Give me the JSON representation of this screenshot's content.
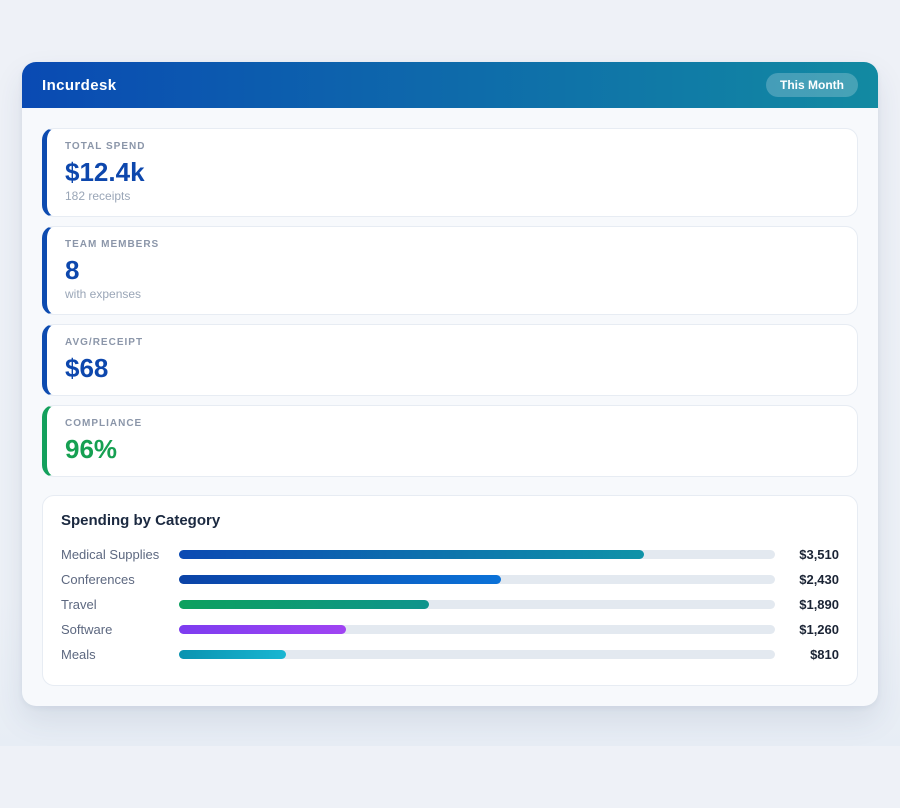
{
  "app": {
    "title": "Incurdesk",
    "period_badge": "This Month",
    "header_gradient": [
      "#0a4ab3",
      "#128aa2"
    ]
  },
  "stats": [
    {
      "label": "TOTAL SPEND",
      "value": "$12.4k",
      "caption": "182 receipts",
      "accent_color": "#0d4bb0",
      "value_color": "#0d47ad"
    },
    {
      "label": "TEAM MEMBERS",
      "value": "8",
      "caption": "with expenses",
      "accent_color": "#0d4bb0",
      "value_color": "#0d47ad"
    },
    {
      "label": "AVG/RECEIPT",
      "value": "$68",
      "caption": null,
      "accent_color": "#0d4bb0",
      "value_color": "#0d47ad"
    },
    {
      "label": "COMPLIANCE",
      "value": "96%",
      "caption": null,
      "accent_color": "#13a05c",
      "value_color": "#16a052"
    }
  ],
  "chart": {
    "title": "Spending by Category",
    "track_color": "#e3e9f0"
  },
  "chart_data": {
    "type": "bar",
    "orientation": "horizontal",
    "title": "Spending by Category",
    "categories": [
      "Medical Supplies",
      "Conferences",
      "Travel",
      "Software",
      "Meals"
    ],
    "values": [
      3510,
      2430,
      1890,
      1260,
      810
    ],
    "value_labels": [
      "$3,510",
      "$2,430",
      "$1,890",
      "$1,260",
      "$810"
    ],
    "xlim": [
      0,
      4500
    ],
    "grid": false,
    "legend": false,
    "bar_gradients": [
      [
        "#0b4ab3",
        "#0f93a8"
      ],
      [
        "#0b43a6",
        "#0b72d8"
      ],
      [
        "#0ca05e",
        "#0f948c"
      ],
      [
        "#7d3cf0",
        "#a044f2"
      ],
      [
        "#0a93b0",
        "#19b6d2"
      ]
    ]
  }
}
